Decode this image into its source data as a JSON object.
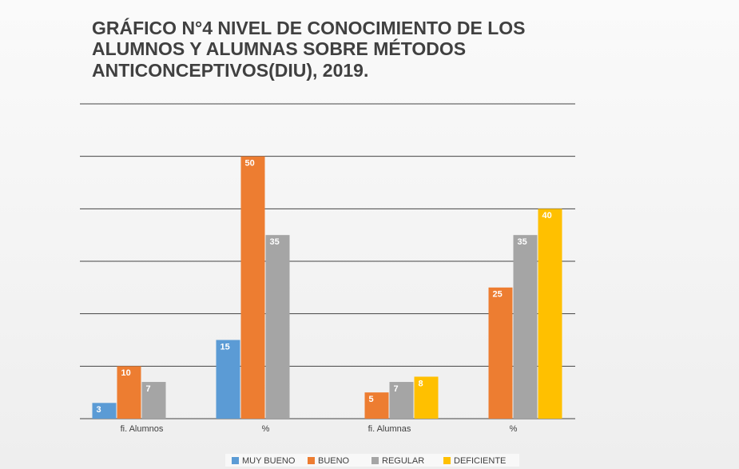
{
  "chart_data": {
    "type": "bar",
    "title": [
      "GRÁFICO N°4  NIVEL DE CONOCIMIENTO DE LOS",
      "ALUMNOS Y ALUMNAS SOBRE MÉTODOS",
      "ANTICONCEPTIVOS(DIU), 2019."
    ],
    "categories": [
      "fi. Alumnos",
      "%",
      "fi. Alumnas",
      "%"
    ],
    "series": [
      {
        "name": "MUY BUENO",
        "color": "#5b9bd5",
        "values": [
          3,
          15,
          null,
          null
        ]
      },
      {
        "name": "BUENO",
        "color": "#ed7d31",
        "values": [
          10,
          50,
          5,
          25
        ]
      },
      {
        "name": "REGULAR",
        "color": "#a5a5a5",
        "values": [
          7,
          35,
          7,
          35
        ]
      },
      {
        "name": "DEFICIENTE",
        "color": "#ffc000",
        "values": [
          null,
          null,
          8,
          40
        ]
      }
    ],
    "ylim": [
      0,
      60
    ],
    "yticks": [
      0,
      10,
      20,
      30,
      40,
      50,
      60
    ],
    "grid": true,
    "legend": "bottom"
  }
}
